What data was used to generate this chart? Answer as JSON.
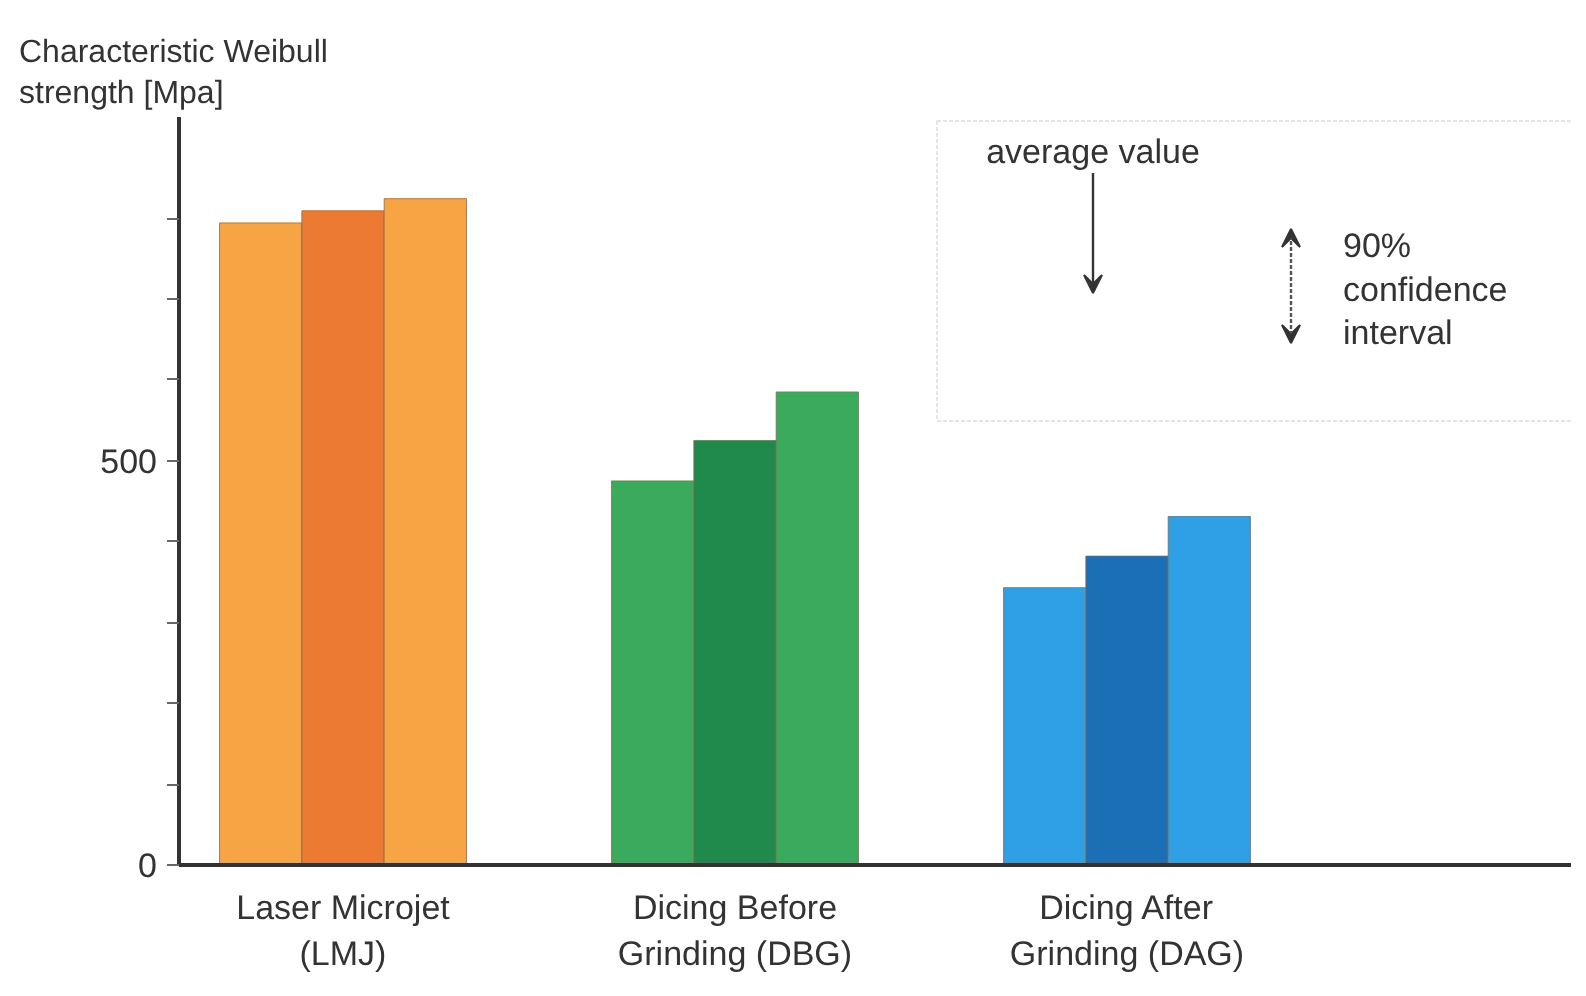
{
  "chart_data": {
    "type": "bar",
    "ylabel": "Characteristic Weibull\nstrength [Mpa]",
    "categories": [
      "Laser Microjet\n(LMJ)",
      "Dicing Before\nGrinding (DBG)",
      "Dicing After\nGrinding (DAG)"
    ],
    "series": [
      {
        "values": [
          794,
          475,
          343
        ],
        "colors": [
          "#f7a444",
          "#3aaa5c",
          "#2f9fe6"
        ]
      },
      {
        "values": [
          809,
          525,
          382
        ],
        "colors": [
          "#ec7a32",
          "#1f8a4c",
          "#1b6fb5"
        ]
      },
      {
        "values": [
          824,
          585,
          431
        ],
        "colors": [
          "#f7a444",
          "#3aaa5c",
          "#2f9fe6"
        ]
      }
    ],
    "ylim": [
      0,
      925
    ],
    "yticks": [
      0,
      {
        "value": 100,
        "label": null
      },
      {
        "value": 200,
        "label": null
      },
      {
        "value": 300,
        "label": null
      },
      {
        "value": 400,
        "label": null
      },
      500,
      {
        "value": 600,
        "label": null
      },
      {
        "value": 700,
        "label": null
      },
      {
        "value": 800,
        "label": null
      }
    ],
    "grid": false,
    "annotations": [
      "average value",
      "90%\nconfidence\ninterval"
    ]
  }
}
